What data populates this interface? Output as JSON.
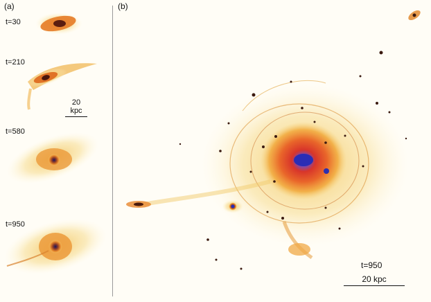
{
  "panels": {
    "a": {
      "label": "(a)"
    },
    "b": {
      "label": "(b)"
    }
  },
  "frames": [
    {
      "time_label": "t=30"
    },
    {
      "time_label": "t=210"
    },
    {
      "time_label": "t=580"
    },
    {
      "time_label": "t=950"
    }
  ],
  "panel_a_scale": {
    "label": "20 kpc"
  },
  "panel_b": {
    "time_label": "t=950",
    "scale_label": "20 kpc"
  },
  "colors": {
    "halo": "#f6d37a",
    "disk_orange": "#e8872a",
    "core_red": "#d8352a",
    "core_blue": "#3a3ec4",
    "satellite": "#3b1a10"
  }
}
